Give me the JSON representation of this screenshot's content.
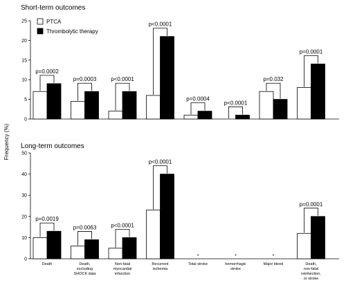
{
  "ylabel": "Frequency (%)",
  "legend": {
    "items": [
      {
        "label": "PTCA",
        "style": "open"
      },
      {
        "label": "Thrombolytic therapy",
        "style": "filled"
      }
    ]
  },
  "chart_data": [
    {
      "type": "bar",
      "title": "Short-term outcomes",
      "categories": [
        "",
        "",
        "",
        "",
        "",
        "",
        "",
        ""
      ],
      "series": [
        {
          "name": "PTCA",
          "values": [
            7,
            4.5,
            2,
            6,
            1,
            0,
            7,
            8
          ]
        },
        {
          "name": "Thrombolytic therapy",
          "values": [
            9,
            7,
            7,
            21,
            2,
            1,
            5,
            14
          ]
        }
      ],
      "pvalues": [
        "p=0.0002",
        "p=0.0003",
        "p<0.0001",
        "p<0.0001",
        "p=0.0004",
        "p<0.0001",
        "p=0.032",
        "p=0.0001"
      ],
      "ylim": [
        0,
        25
      ],
      "yticks": [
        0,
        5,
        10,
        15,
        20,
        25
      ],
      "grid": false,
      "legend_position": "top-left"
    },
    {
      "type": "bar",
      "title": "Long-term outcomes",
      "categories": [
        "Death",
        "Death, excluding SHOCK data",
        "Non-fatal myocardial infarction",
        "Recurrent ischemia",
        "Total stroke",
        "hemorrhagic stroke",
        "Major bleed",
        "Death, non-fatal reinfarction, or stroke"
      ],
      "series": [
        {
          "name": "PTCA",
          "values": [
            10,
            6,
            5,
            23,
            null,
            null,
            null,
            12
          ]
        },
        {
          "name": "Thrombolytic therapy",
          "values": [
            13,
            9,
            10,
            40,
            null,
            null,
            null,
            20
          ]
        }
      ],
      "pvalues": [
        "p=0.0019",
        "p=0.0063",
        "p<0.0001",
        "p<0.0001",
        "",
        "",
        "",
        "p=0.0001"
      ],
      "markers": [
        "",
        "",
        "",
        "",
        "*",
        "*",
        "*",
        ""
      ],
      "ylim": [
        0,
        50
      ],
      "yticks": [
        0,
        10,
        20,
        30,
        40,
        50
      ],
      "grid": false
    }
  ]
}
